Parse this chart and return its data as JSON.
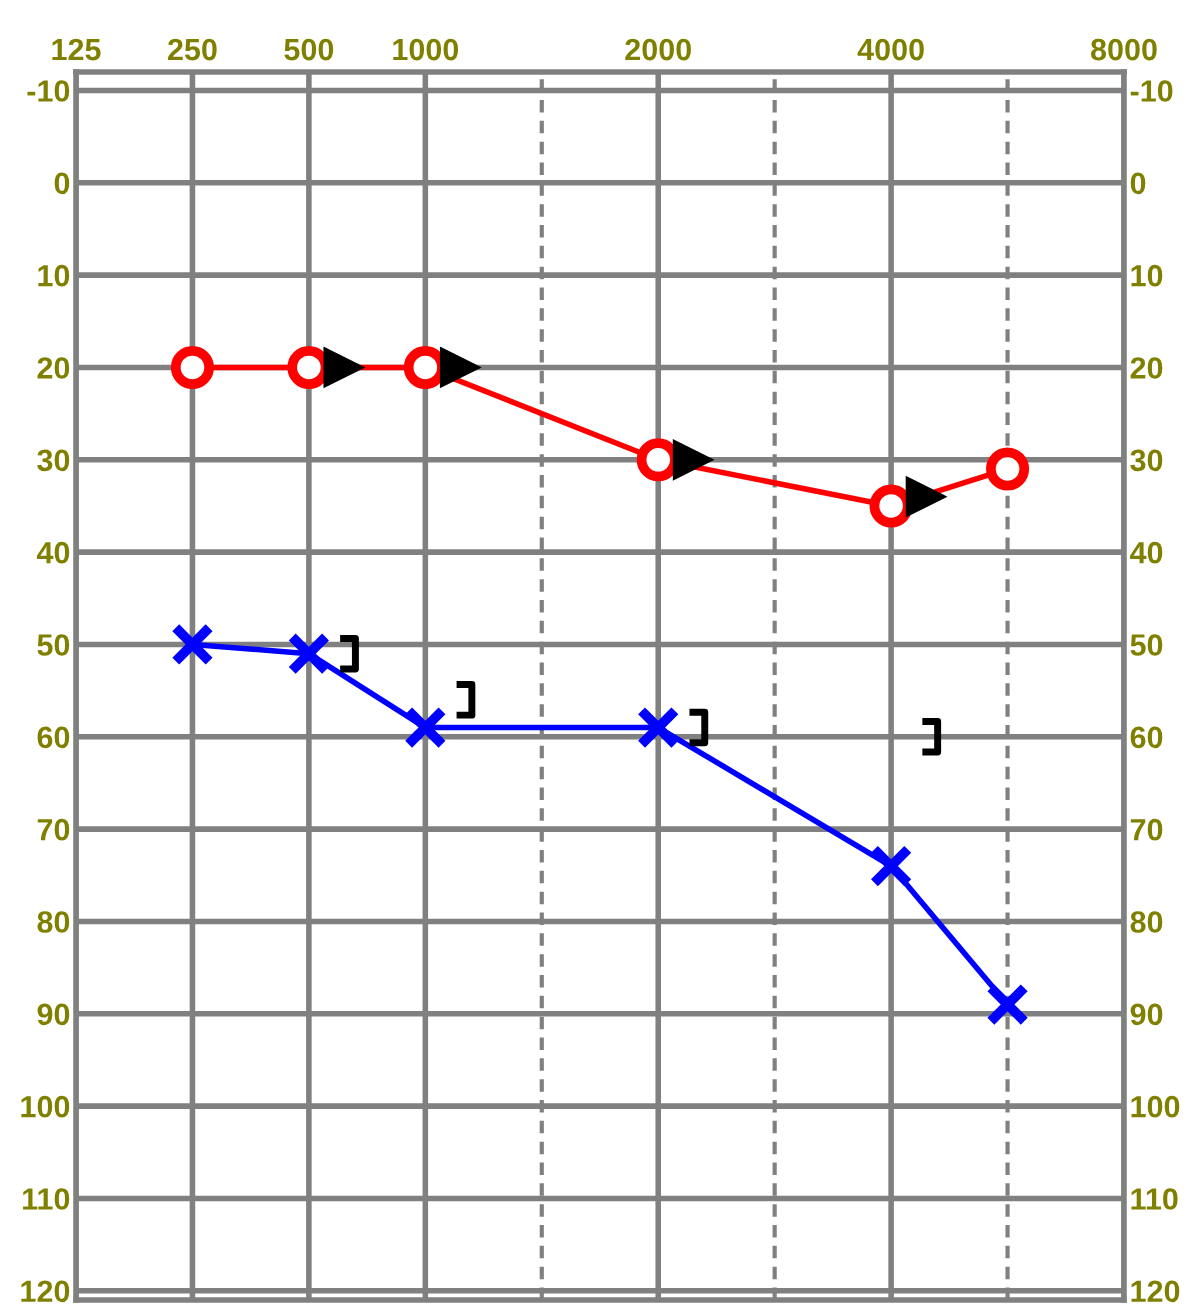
{
  "chart_data": {
    "type": "line",
    "categories": [
      "125",
      "250",
      "500",
      "1000",
      null,
      "2000",
      null,
      "4000",
      null,
      "8000"
    ],
    "series": [
      {
        "color": "#ff0000",
        "marker": "circle",
        "values": [
          null,
          20,
          20,
          20,
          null,
          30,
          null,
          35,
          31,
          null
        ]
      },
      {
        "color": "#0000ff",
        "marker": "cross",
        "values": [
          null,
          50,
          51,
          59,
          null,
          59,
          null,
          74,
          89,
          null
        ]
      },
      {
        "type": "scatter",
        "color": "#000000",
        "marker": "triangle",
        "values": [
          null,
          null,
          20,
          20,
          null,
          30,
          null,
          34,
          null,
          null
        ]
      },
      {
        "type": "scatter",
        "color": "#000000",
        "values": [
          null,
          null,
          51,
          56,
          null,
          59,
          null,
          60,
          null,
          null
        ]
      }
    ],
    "ylim": [
      121,
      -12
    ],
    "yticks": [
      -10,
      0,
      10,
      20,
      30,
      40,
      50,
      60,
      70,
      80,
      90,
      100,
      110,
      120
    ],
    "y2lim": [
      121,
      -12
    ],
    "y2ticks": [
      -10,
      0,
      10,
      20,
      30,
      40,
      50,
      60,
      70,
      80,
      90,
      100,
      110,
      120
    ],
    "grid": true
  }
}
